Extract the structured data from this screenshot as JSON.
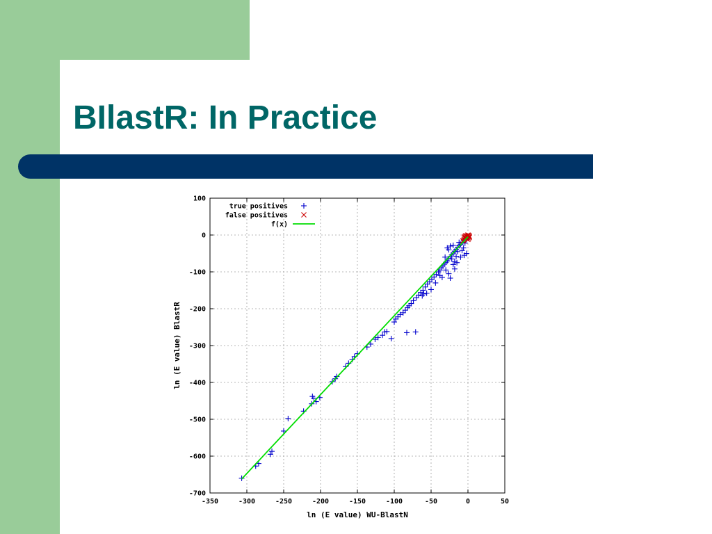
{
  "slide": {
    "title": "BIlastR: In Practice",
    "colors": {
      "sidebar": "#99cc99",
      "title": "#006666",
      "bar": "#003366"
    }
  },
  "chart_data": {
    "type": "scatter",
    "title": "",
    "xlabel": "ln (E value) WU-BlastN",
    "ylabel": "ln (E value) BlastR",
    "xlim": [
      -350,
      50
    ],
    "ylim": [
      -700,
      100
    ],
    "xticks": [
      -350,
      -300,
      -250,
      -200,
      -150,
      -100,
      -50,
      0,
      50
    ],
    "yticks": [
      -700,
      -600,
      -500,
      -400,
      -300,
      -200,
      -100,
      0,
      100
    ],
    "grid": true,
    "legend_position": "top-left",
    "series": [
      {
        "name": "true positives",
        "marker": "plus",
        "color": "#0000cc",
        "points": [
          [
            -307,
            -660
          ],
          [
            -288,
            -627
          ],
          [
            -284,
            -620
          ],
          [
            -268,
            -595
          ],
          [
            -266,
            -587
          ],
          [
            -250,
            -532
          ],
          [
            -244,
            -498
          ],
          [
            -223,
            -478
          ],
          [
            -212,
            -458
          ],
          [
            -211,
            -438
          ],
          [
            -209,
            -443
          ],
          [
            -206,
            -452
          ],
          [
            -201,
            -441
          ],
          [
            -184,
            -398
          ],
          [
            -180,
            -390
          ],
          [
            -178,
            -384
          ],
          [
            -166,
            -357
          ],
          [
            -162,
            -348
          ],
          [
            -157,
            -338
          ],
          [
            -154,
            -330
          ],
          [
            -150,
            -322
          ],
          [
            -137,
            -304
          ],
          [
            -132,
            -296
          ],
          [
            -126,
            -283
          ],
          [
            -122,
            -278
          ],
          [
            -116,
            -272
          ],
          [
            -113,
            -263
          ],
          [
            -110,
            -262
          ],
          [
            -104,
            -281
          ],
          [
            -100,
            -236
          ],
          [
            -98,
            -228
          ],
          [
            -95,
            -222
          ],
          [
            -92,
            -216
          ],
          [
            -88,
            -211
          ],
          [
            -85,
            -204
          ],
          [
            -83,
            -265
          ],
          [
            -82,
            -197
          ],
          [
            -80,
            -192
          ],
          [
            -77,
            -186
          ],
          [
            -74,
            -178
          ],
          [
            -71,
            -263
          ],
          [
            -70,
            -170
          ],
          [
            -67,
            -163
          ],
          [
            -64,
            -156
          ],
          [
            -61,
            -150
          ],
          [
            -58,
            -141
          ],
          [
            -55,
            -133
          ],
          [
            -52,
            -127
          ],
          [
            -49,
            -120
          ],
          [
            -46,
            -114
          ],
          [
            -43,
            -107
          ],
          [
            -40,
            -100
          ],
          [
            -38,
            -95
          ],
          [
            -36,
            -89
          ],
          [
            -34,
            -84
          ],
          [
            -32,
            -79
          ],
          [
            -30,
            -74
          ],
          [
            -28,
            -70
          ],
          [
            -26,
            -64
          ],
          [
            -24,
            -59
          ],
          [
            -22,
            -54
          ],
          [
            -20,
            -49
          ],
          [
            -18,
            -44
          ],
          [
            -16,
            -39
          ],
          [
            -14,
            -34
          ],
          [
            -12,
            -29
          ],
          [
            -10,
            -25
          ],
          [
            -8,
            -20
          ],
          [
            -6,
            -15
          ],
          [
            -4,
            -10
          ],
          [
            -31,
            -60
          ],
          [
            -28,
            -35
          ],
          [
            -26,
            -40
          ],
          [
            -24,
            -30
          ],
          [
            -22,
            -65
          ],
          [
            -20,
            -28
          ],
          [
            -18,
            -72
          ],
          [
            -16,
            -58
          ],
          [
            -14,
            -45
          ],
          [
            -12,
            -20
          ],
          [
            -26,
            -105
          ],
          [
            -24,
            -117
          ],
          [
            -20,
            -80
          ],
          [
            -18,
            -92
          ],
          [
            -15,
            -75
          ],
          [
            -35,
            -115
          ],
          [
            -30,
            -95
          ],
          [
            -10,
            -60
          ],
          [
            -8,
            -42
          ],
          [
            -6,
            -35
          ],
          [
            -4,
            -22
          ],
          [
            -2,
            -12
          ],
          [
            -2,
            -50
          ],
          [
            -5,
            -55
          ],
          [
            -60,
            -160
          ],
          [
            -62,
            -165
          ],
          [
            -56,
            -158
          ],
          [
            -50,
            -148
          ],
          [
            -44,
            -130
          ],
          [
            -38,
            -110
          ]
        ]
      },
      {
        "name": "false positives",
        "marker": "cross",
        "color": "#cc0000",
        "points": [
          [
            -6,
            -14
          ],
          [
            -5,
            -11
          ],
          [
            -4,
            -9
          ],
          [
            -3,
            -7
          ],
          [
            -2,
            -4
          ],
          [
            -1,
            -2
          ],
          [
            0,
            0
          ],
          [
            1,
            -1
          ],
          [
            2,
            -3
          ],
          [
            2,
            -6
          ],
          [
            1,
            -9
          ],
          [
            0,
            -12
          ],
          [
            -1,
            -5
          ],
          [
            -3,
            -2
          ],
          [
            -4,
            -4
          ],
          [
            -5,
            -6
          ],
          [
            0,
            -3
          ],
          [
            1,
            -5
          ],
          [
            -2,
            -10
          ],
          [
            -7,
            -16
          ]
        ]
      },
      {
        "name": "f(x)",
        "marker": "line",
        "color": "#00dd00",
        "points": [
          [
            -307,
            -662
          ],
          [
            0,
            -5
          ]
        ]
      }
    ]
  }
}
